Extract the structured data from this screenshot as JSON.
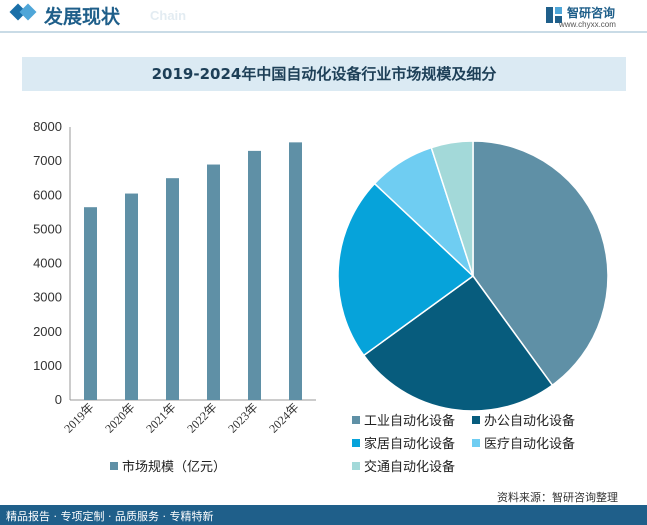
{
  "header": {
    "section_title": "发展现状",
    "section_sub": "Chain",
    "logo_name": "智研咨询",
    "logo_url": "www.chyxx.com"
  },
  "colors": {
    "bar": "#5f90a6",
    "pie": [
      "#5f90a6",
      "#075c7d",
      "#06a3da",
      "#6fcdf2",
      "#a3d9d9"
    ],
    "header_blue": "#1f5f8a"
  },
  "chart_data": [
    {
      "type": "bar",
      "title": "2019-2024年中国自动化设备行业市场规模及细分",
      "categories": [
        "2019年",
        "2020年",
        "2021年",
        "2022年",
        "2023年",
        "2024年"
      ],
      "series": [
        {
          "name": "市场规模（亿元）",
          "values": [
            5650,
            6050,
            6500,
            6900,
            7300,
            7550
          ]
        }
      ],
      "yticks": [
        0,
        1000,
        2000,
        3000,
        4000,
        5000,
        6000,
        7000,
        8000
      ],
      "ylim": [
        0,
        8000
      ],
      "grid": false,
      "legend": "bottom"
    },
    {
      "type": "pie",
      "labels": [
        "工业自动化设备",
        "办公自动化设备",
        "家居自动化设备",
        "医疗自动化设备",
        "交通自动化设备"
      ],
      "values": [
        40,
        25,
        22,
        8,
        5
      ],
      "legend": "bottom"
    }
  ],
  "footer": {
    "slogan": "精品报告 · 专项定制 · 品质服务 · 专精特新",
    "source": "资料来源：智研咨询整理"
  }
}
